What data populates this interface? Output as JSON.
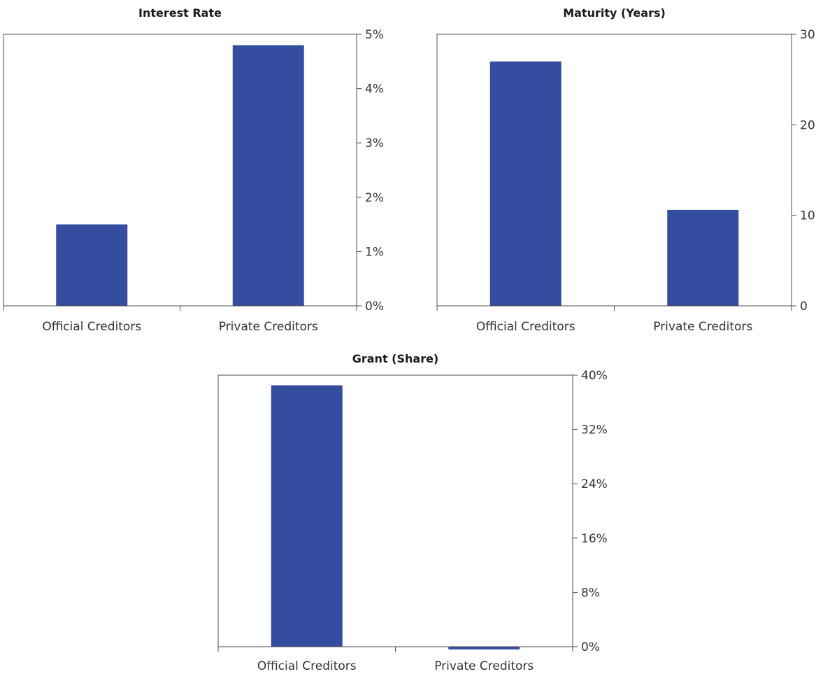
{
  "colors": {
    "bar": "#354da0",
    "axis": "#4d4d4d",
    "text": "#333333"
  },
  "chart_data": [
    {
      "type": "bar",
      "title": "Interest Rate",
      "categories": [
        "Official Creditors",
        "Private Creditors"
      ],
      "values": [
        1.5,
        4.8
      ],
      "ylim": [
        0,
        5
      ],
      "yticks": [
        0,
        1,
        2,
        3,
        4,
        5
      ],
      "ytick_labels": [
        "0%",
        "1%",
        "2%",
        "3%",
        "4%",
        "5%"
      ],
      "xlabel": "",
      "ylabel": "",
      "axis_side": "right",
      "grid": false,
      "legend": "none"
    },
    {
      "type": "bar",
      "title": "Maturity (Years)",
      "categories": [
        "Official Creditors",
        "Private Creditors"
      ],
      "values": [
        27,
        10.6
      ],
      "ylim": [
        0,
        30
      ],
      "yticks": [
        0,
        10,
        20,
        30
      ],
      "ytick_labels": [
        "0",
        "10",
        "20",
        "30"
      ],
      "xlabel": "",
      "ylabel": "",
      "axis_side": "right",
      "grid": false,
      "legend": "none"
    },
    {
      "type": "bar",
      "title": "Grant (Share)",
      "categories": [
        "Official Creditors",
        "Private Creditors"
      ],
      "values": [
        38.5,
        -0.4
      ],
      "ylim": [
        0,
        40
      ],
      "yticks": [
        0,
        8,
        16,
        24,
        32,
        40
      ],
      "ytick_labels": [
        "0%",
        "8%",
        "16%",
        "24%",
        "32%",
        "40%"
      ],
      "xlabel": "",
      "ylabel": "",
      "axis_side": "right",
      "grid": false,
      "legend": "none"
    }
  ]
}
